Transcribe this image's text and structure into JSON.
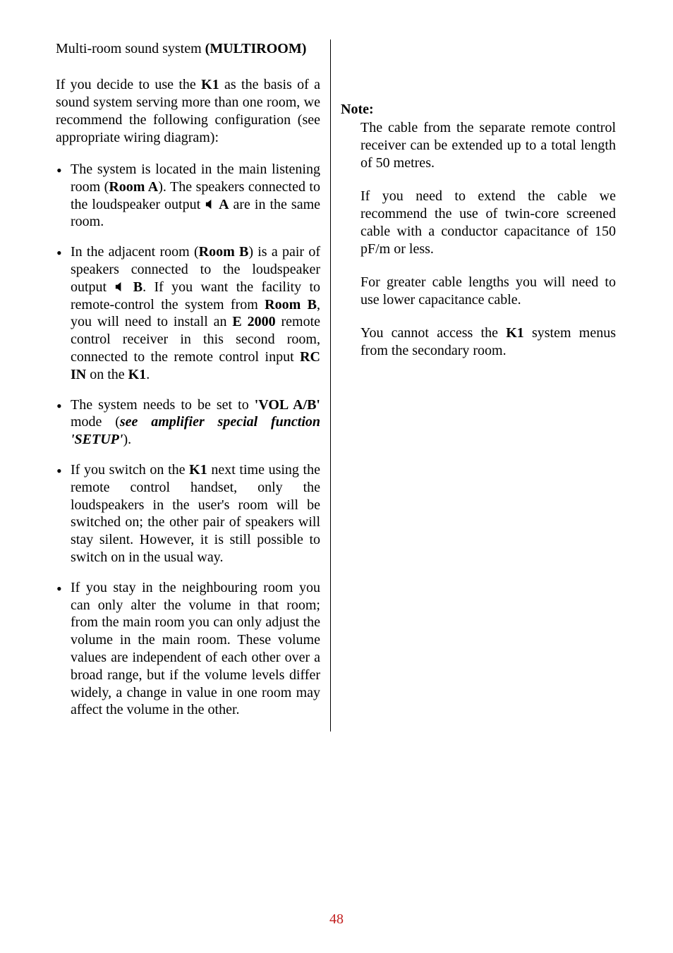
{
  "fonts": {
    "body_family": "Times New Roman",
    "body_size_pt": 15
  },
  "colors": {
    "text": "#000000",
    "page_num": "#c22020",
    "rule": "#000000",
    "bg": "#ffffff"
  },
  "heading": {
    "plain": "Multi-room sound system   ",
    "bold": "(MULTIROOM)"
  },
  "intro": {
    "pre": "If you decide to use the ",
    "k1": "K1",
    "post": " as the basis of a sound system serving more than one room, we recommend the following configuration (see appropriate wiring diagram):"
  },
  "bullets": [
    {
      "parts": [
        {
          "t": "The system is located in the main listening room ("
        },
        {
          "t": "Room A",
          "b": true
        },
        {
          "t": "). The speakers connected to the loudspeaker output "
        },
        {
          "icon": true
        },
        {
          "t": " A",
          "b": true
        },
        {
          "t": " are in the same room."
        }
      ]
    },
    {
      "parts": [
        {
          "t": "In the adjacent room ("
        },
        {
          "t": "Room B",
          "b": true
        },
        {
          "t": ") is a pair of speakers connected to the loudspeaker output "
        },
        {
          "icon": true
        },
        {
          "t": " B",
          "b": true
        },
        {
          "t": ". If you want the facility to remote-control the system from "
        },
        {
          "t": "Room B",
          "b": true
        },
        {
          "t": ", you will need to install an "
        },
        {
          "t": "E 2000",
          "b": true
        },
        {
          "t": " remote control receiver in this second room, connected to the remote control input "
        },
        {
          "t": "RC IN",
          "b": true
        },
        {
          "t": " on the "
        },
        {
          "t": "K1",
          "b": true
        },
        {
          "t": "."
        }
      ]
    },
    {
      "parts": [
        {
          "t": "The system needs to be set to "
        },
        {
          "t": "'VOL A/B'",
          "b": true
        },
        {
          "t": " mode ("
        },
        {
          "t": "see amplifier special function 'SETUP'",
          "b": true,
          "i": true
        },
        {
          "t": ")."
        }
      ]
    },
    {
      "parts": [
        {
          "t": "If you switch on the "
        },
        {
          "t": "K1",
          "b": true
        },
        {
          "t": " next time using the remote control handset, only the loudspeakers in the user's room will be switched on; the other pair of speakers will stay silent. However, it is still possible to switch on in the usual way."
        }
      ]
    },
    {
      "parts": [
        {
          "t": "If you stay in the neighbouring room you can only alter the volume in that room; from the main room you can only adjust the volume in the main room. These volume values are independent of each other over a broad range, but if the volume levels differ widely, a change in value in one room may affect the volume in the other."
        }
      ]
    }
  ],
  "note": {
    "label": "Note:",
    "paras": [
      [
        {
          "t": "The cable from the separate remote control receiver can be extended up to a total length of 50 metres."
        }
      ],
      [
        {
          "t": "If you need to extend the cable we recommend the use of twin-core screened cable with a conductor capacitance of 150 pF/m or less."
        }
      ],
      [
        {
          "t": "For greater cable lengths you will need to use lower capacitance cable."
        }
      ],
      [
        {
          "t": "You cannot access the "
        },
        {
          "t": "K1",
          "b": true
        },
        {
          "t": " system menus from the secondary room."
        }
      ]
    ]
  },
  "page_number": "48"
}
